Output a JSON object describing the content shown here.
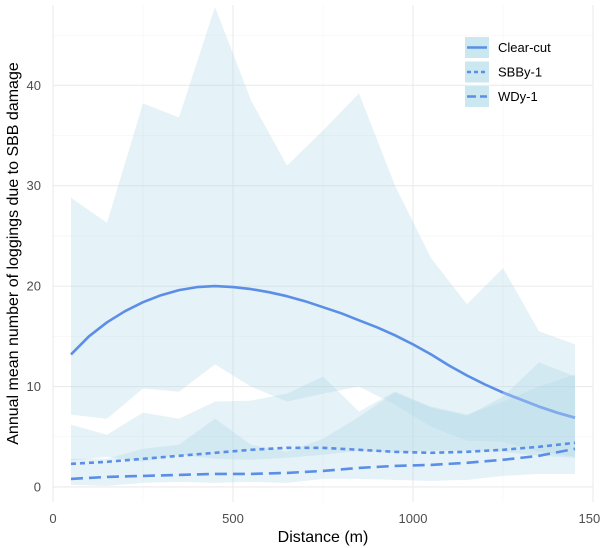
{
  "chart_data": {
    "type": "line",
    "xlabel": "Distance (m)",
    "ylabel": "Annual mean number of loggings due to SBB damage",
    "xlim": [
      0,
      1500
    ],
    "ylim": [
      -1.5,
      48
    ],
    "x_ticks": [
      0,
      500,
      1000,
      1500
    ],
    "y_ticks": [
      0,
      10,
      20,
      30,
      40
    ],
    "grid": true,
    "legend_position": "top-right",
    "colors": {
      "line": "#5b8ee6",
      "line_faded": "#8db4ef",
      "band": "#add8e6",
      "legend_key": "#cbe7ef"
    },
    "bands": {
      "x": [
        50,
        150,
        250,
        350,
        450,
        550,
        650,
        750,
        850,
        950,
        1050,
        1150,
        1250,
        1350,
        1450
      ],
      "series": [
        {
          "lower": [
            7.2,
            6.8,
            9.8,
            9.5,
            12.2,
            10.0,
            8.5,
            9.3,
            10.0,
            8.2,
            6.0,
            4.6,
            4.5,
            3.5,
            3.0
          ],
          "upper": [
            28.8,
            26.3,
            38.2,
            36.8,
            47.8,
            38.5,
            32.0,
            35.5,
            39.2,
            30.0,
            22.8,
            18.2,
            21.8,
            15.5,
            14.2
          ]
        },
        {
          "lower": [
            2.6,
            3.0,
            2.5,
            3.2,
            2.8,
            2.7,
            2.9,
            3.2,
            3.6,
            3.4,
            3.6,
            3.6,
            3.5,
            3.1,
            2.9
          ],
          "upper": [
            6.2,
            5.2,
            7.4,
            6.8,
            8.5,
            8.6,
            9.3,
            11.0,
            7.5,
            9.5,
            8.0,
            7.2,
            8.5,
            10.0,
            11.2
          ]
        },
        {
          "lower": [
            0.2,
            0.1,
            0.4,
            0.5,
            0.4,
            0.5,
            0.4,
            0.8,
            0.8,
            0.7,
            0.6,
            0.7,
            1.1,
            1.3,
            1.3
          ],
          "upper": [
            2.8,
            2.8,
            3.8,
            4.2,
            6.8,
            4.2,
            3.5,
            4.8,
            7.0,
            9.4,
            7.9,
            7.1,
            9.0,
            12.4,
            11.0
          ]
        }
      ]
    },
    "series": [
      {
        "name": "Clear-cut",
        "dash": "solid",
        "x": [
          50,
          100,
          150,
          200,
          250,
          300,
          350,
          400,
          450,
          500,
          550,
          600,
          650,
          700,
          750,
          800,
          850,
          900,
          950,
          1000,
          1050,
          1100,
          1150,
          1200,
          1250,
          1300,
          1350,
          1400,
          1450
        ],
        "y": [
          13.2,
          15.0,
          16.4,
          17.5,
          18.4,
          19.1,
          19.6,
          19.9,
          20.0,
          19.9,
          19.7,
          19.4,
          19.0,
          18.5,
          17.9,
          17.3,
          16.6,
          15.9,
          15.1,
          14.2,
          13.2,
          12.1,
          11.1,
          10.2,
          9.4,
          8.7,
          8.0,
          7.4,
          6.9
        ]
      },
      {
        "name": "SBBy-1",
        "dash": "short",
        "x": [
          50,
          150,
          250,
          350,
          450,
          550,
          650,
          750,
          850,
          950,
          1050,
          1150,
          1250,
          1350,
          1450
        ],
        "y": [
          2.3,
          2.5,
          2.8,
          3.1,
          3.4,
          3.7,
          3.9,
          3.9,
          3.7,
          3.5,
          3.4,
          3.5,
          3.7,
          4.0,
          4.4
        ]
      },
      {
        "name": "WDy-1",
        "dash": "long",
        "x": [
          50,
          150,
          250,
          350,
          450,
          550,
          650,
          750,
          850,
          950,
          1050,
          1150,
          1250,
          1350,
          1450
        ],
        "y": [
          0.8,
          1.0,
          1.1,
          1.2,
          1.3,
          1.3,
          1.4,
          1.6,
          1.9,
          2.1,
          2.2,
          2.4,
          2.7,
          3.1,
          3.8
        ]
      }
    ]
  }
}
